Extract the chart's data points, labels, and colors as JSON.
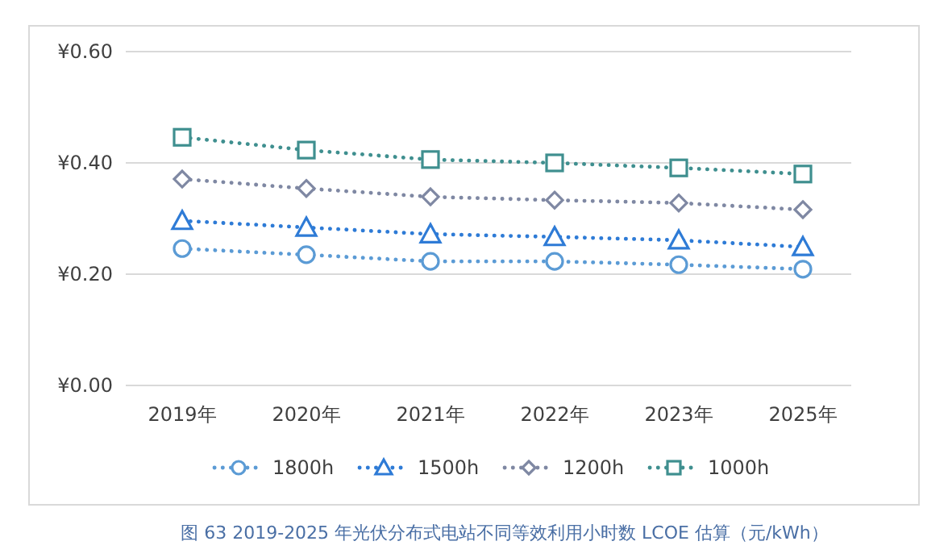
{
  "chart_data": {
    "type": "line",
    "categories": [
      "2019年",
      "2020年",
      "2021年",
      "2022年",
      "2023年",
      "2025年"
    ],
    "series": [
      {
        "name": "1800h",
        "color": "#5b9bd5",
        "marker": "circle",
        "values": [
          0.246,
          0.235,
          0.223,
          0.223,
          0.217,
          0.209
        ]
      },
      {
        "name": "1500h",
        "color": "#2e7bd6",
        "marker": "triangle",
        "values": [
          0.296,
          0.284,
          0.272,
          0.267,
          0.261,
          0.249
        ]
      },
      {
        "name": "1200h",
        "color": "#7f88a3",
        "marker": "diamond",
        "values": [
          0.371,
          0.354,
          0.339,
          0.333,
          0.328,
          0.316
        ]
      },
      {
        "name": "1000h",
        "color": "#3f8f8f",
        "marker": "square",
        "values": [
          0.446,
          0.423,
          0.406,
          0.4,
          0.391,
          0.38
        ]
      }
    ],
    "ylim": [
      0,
      0.6
    ],
    "yticks": [
      {
        "value": 0,
        "label": "¥0.00"
      },
      {
        "value": 0.2,
        "label": "¥0.20"
      },
      {
        "value": 0.4,
        "label": "¥0.40"
      },
      {
        "value": 0.6,
        "label": "¥0.60"
      }
    ],
    "grid": "y",
    "legend": "bottom",
    "line_style": "dotted",
    "annotations": [
      "图  63 2019-2025 年光伏分布式电站不同等效利用小时数 LCOE 估算（元/kWh）"
    ]
  }
}
